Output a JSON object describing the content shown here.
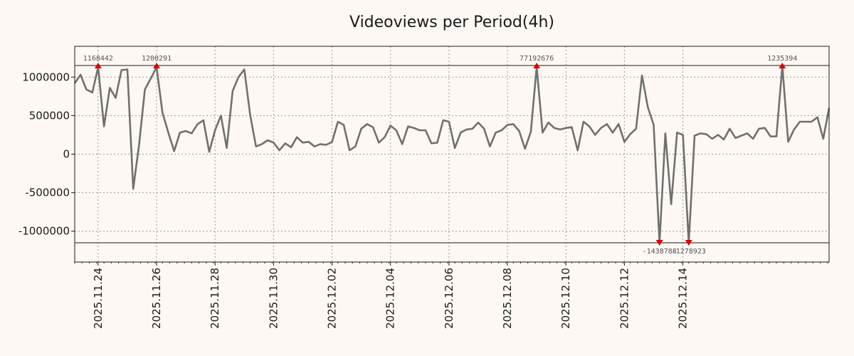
{
  "chart_data": {
    "type": "line",
    "title": "Videoviews per Period(4h)",
    "xlabel": "",
    "ylabel": "",
    "grid": true,
    "ylim": [
      -1400000,
      1400000
    ],
    "xlim": [
      0,
      129
    ],
    "x_start_date": "2025-11-23",
    "period_hours": 4,
    "yticks": [
      1000000,
      500000,
      0,
      -500000,
      -1000000
    ],
    "ytick_labels": [
      "1000000",
      "500000",
      "0",
      "-500000",
      "-1000000"
    ],
    "xtick_labels": [
      "2025.11.24",
      "2025.11.26",
      "2025.11.28",
      "2025.11.30",
      "2025.12.02",
      "2025.12.04",
      "2025.12.06",
      "2025.12.08",
      "2025.12.10",
      "2025.12.12",
      "2025.12.14"
    ],
    "xtick_positions": [
      4,
      14,
      24,
      34,
      44,
      54,
      64,
      74,
      84,
      94,
      104
    ],
    "reference_lines": [
      1150000,
      -1150000
    ],
    "series": [
      {
        "name": "Videoviews",
        "values": [
          920000,
          1030000,
          840000,
          800000,
          1130000,
          360000,
          860000,
          730000,
          1090000,
          1100000,
          -450000,
          120000,
          840000,
          980000,
          1130000,
          540000,
          280000,
          40000,
          280000,
          300000,
          270000,
          390000,
          440000,
          30000,
          310000,
          500000,
          80000,
          820000,
          1000000,
          1100000,
          510000,
          100000,
          130000,
          180000,
          150000,
          50000,
          140000,
          90000,
          220000,
          150000,
          160000,
          100000,
          130000,
          120000,
          160000,
          420000,
          380000,
          50000,
          100000,
          330000,
          390000,
          350000,
          150000,
          220000,
          370000,
          310000,
          130000,
          360000,
          340000,
          310000,
          310000,
          140000,
          150000,
          440000,
          420000,
          80000,
          280000,
          320000,
          330000,
          410000,
          330000,
          100000,
          280000,
          310000,
          380000,
          390000,
          300000,
          70000,
          290000,
          1130000,
          280000,
          410000,
          340000,
          320000,
          340000,
          350000,
          50000,
          420000,
          360000,
          250000,
          340000,
          390000,
          280000,
          390000,
          160000,
          260000,
          330000,
          1020000,
          610000,
          380000,
          -1150000,
          270000,
          -650000,
          280000,
          250000,
          -1150000,
          240000,
          270000,
          260000,
          200000,
          250000,
          190000,
          330000,
          210000,
          240000,
          270000,
          200000,
          330000,
          340000,
          230000,
          230000,
          1150000,
          160000,
          320000,
          420000,
          420000,
          420000,
          480000,
          200000,
          600000
        ]
      }
    ],
    "annotations": [
      {
        "label": "1168442",
        "x": 4,
        "kind": "max"
      },
      {
        "label": "1200291",
        "x": 14,
        "kind": "max"
      },
      {
        "label": "77192676",
        "x": 79,
        "kind": "max"
      },
      {
        "label": "1235394",
        "x": 121,
        "kind": "max"
      },
      {
        "label": "-1438788",
        "x": 100,
        "kind": "min"
      },
      {
        "label": "-1278923",
        "x": 105,
        "kind": "min"
      }
    ],
    "colors": {
      "line": "#707070",
      "marker": "#dd0000",
      "grid": "#9a9a9a",
      "background": "#fdf8f3",
      "frame": "#1a1a1a"
    }
  }
}
